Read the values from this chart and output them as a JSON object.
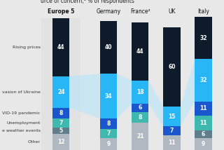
{
  "title": "urce of concern,¹ % of respondents",
  "countries": [
    "Europe 5",
    "Germany",
    "France²",
    "UK",
    "Italy"
  ],
  "values": [
    [
      44,
      24,
      8,
      7,
      5,
      12
    ],
    [
      40,
      34,
      8,
      7,
      0,
      9
    ],
    [
      44,
      18,
      6,
      8,
      0,
      21
    ],
    [
      60,
      15,
      7,
      0,
      0,
      11
    ],
    [
      32,
      32,
      11,
      11,
      6,
      9
    ]
  ],
  "colors": [
    "#0d1b2a",
    "#29b6f6",
    "#1a56cc",
    "#3fb8af",
    "#607d8b",
    "#b0b8c1"
  ],
  "ribbon_color": "#b3e5fc",
  "europe5_bg": "#e2e2e2",
  "bg_color": "#e8e8e8",
  "bar_width": 0.38,
  "positions": [
    1.0,
    2.05,
    2.75,
    3.45,
    4.15
  ],
  "label_texts": [
    "Rising prices",
    "vasion of Ukraine",
    "VID-19 pandemic",
    "Unemployment",
    "e weather events",
    "Other"
  ],
  "title_fontsize": 5.5,
  "label_fontsize": 4.5,
  "header_fontsize": 5.5,
  "value_fontsize": 5.5
}
